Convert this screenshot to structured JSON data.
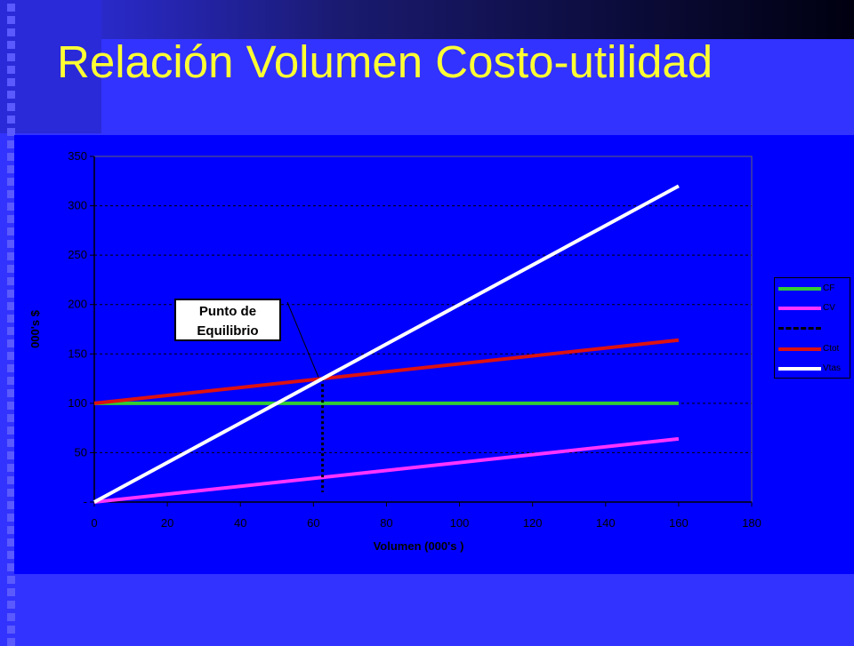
{
  "slide": {
    "title": "Relación Volumen Costo-utilidad"
  },
  "chart_data": {
    "type": "line",
    "xlabel": "Volumen (000's )",
    "ylabel": "000's $",
    "xlim": [
      0,
      180
    ],
    "ylim": [
      0,
      350
    ],
    "x_ticks": [
      "0",
      "20",
      "40",
      "60",
      "80",
      "100",
      "120",
      "140",
      "160",
      "180"
    ],
    "y_ticks": [
      "-",
      "50",
      "100",
      "150",
      "200",
      "250",
      "300",
      "350"
    ],
    "grid": "horizontal dashed",
    "legend_position": "right",
    "series": [
      {
        "name": "CF",
        "color": "#33cc33",
        "x": [
          0,
          160
        ],
        "values": [
          100,
          100
        ]
      },
      {
        "name": "CV",
        "color": "#ff33ff",
        "x": [
          0,
          160
        ],
        "values": [
          0,
          64
        ]
      },
      {
        "name": "",
        "color": "#000000",
        "style": "dotted",
        "x": [
          62.5,
          62.5
        ],
        "values": [
          125,
          10
        ]
      },
      {
        "name": "Ctot",
        "color": "#dd1111",
        "x": [
          0,
          160
        ],
        "values": [
          100,
          164
        ]
      },
      {
        "name": "Vtas",
        "color": "#ffffff",
        "x": [
          0,
          160
        ],
        "values": [
          0,
          320
        ]
      }
    ],
    "annotation": {
      "line1": "Punto de",
      "line2": "Equilibrio",
      "x": 62.5,
      "y": 125
    }
  }
}
